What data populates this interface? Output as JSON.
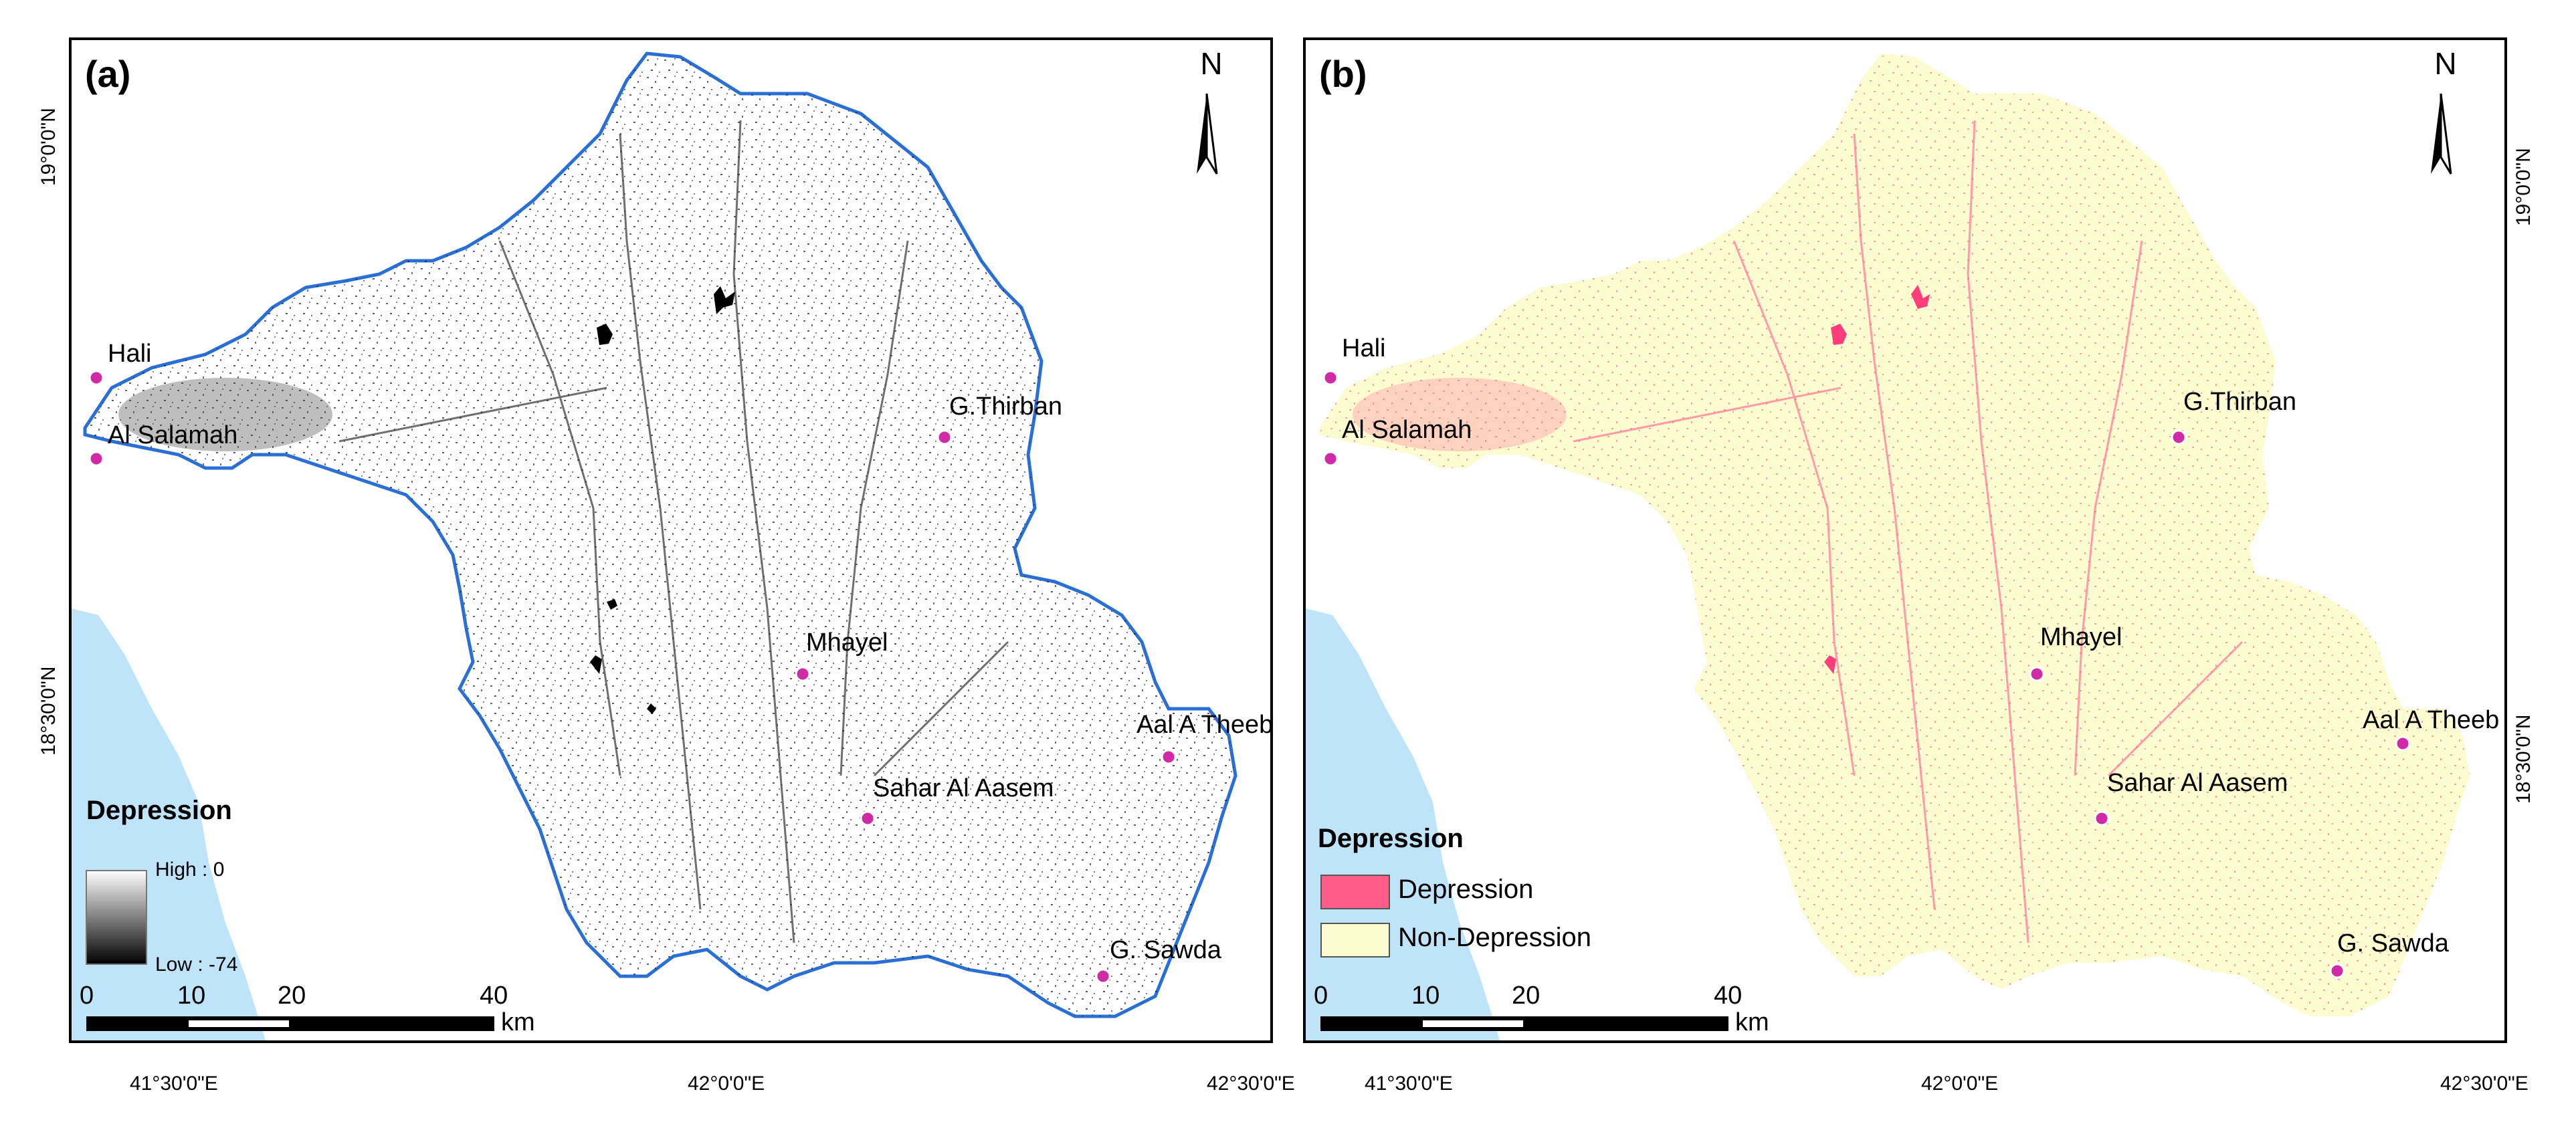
{
  "panel_a": {
    "label": "(a)",
    "north_label": "N",
    "legend": {
      "title": "Depression",
      "high_label": "High : 0",
      "low_label": "Low : -74"
    },
    "scale": {
      "ticks": [
        "0",
        "10",
        "20",
        "40"
      ],
      "unit": "km"
    }
  },
  "panel_b": {
    "label": "(b)",
    "north_label": "N",
    "legend": {
      "title": "Depression",
      "items": [
        {
          "label": "Depression",
          "color": "#ff5c8a"
        },
        {
          "label": "Non-Depression",
          "color": "#fdfbd0"
        }
      ]
    },
    "scale": {
      "ticks": [
        "0",
        "10",
        "20",
        "40"
      ],
      "unit": "km"
    }
  },
  "places": [
    "Hali",
    "Al Salamah",
    "G.Thirban",
    "Mhayel",
    "Aal A Theeb",
    "Sahar Al Aasem",
    "G. Sawda"
  ],
  "longitude_ticks": [
    "41°30'0\"E",
    "42°0'0\"E",
    "42°30'0\"E"
  ],
  "latitude_ticks": [
    "19°0'0\"N",
    "18°30'0\"N"
  ],
  "colors": {
    "sea": "#bfe3f8",
    "basin_outline": "#2a6fd6",
    "place_marker": "#d12aa6",
    "non_depression": "#fdfbd0",
    "depression": "#ff5c8a"
  }
}
